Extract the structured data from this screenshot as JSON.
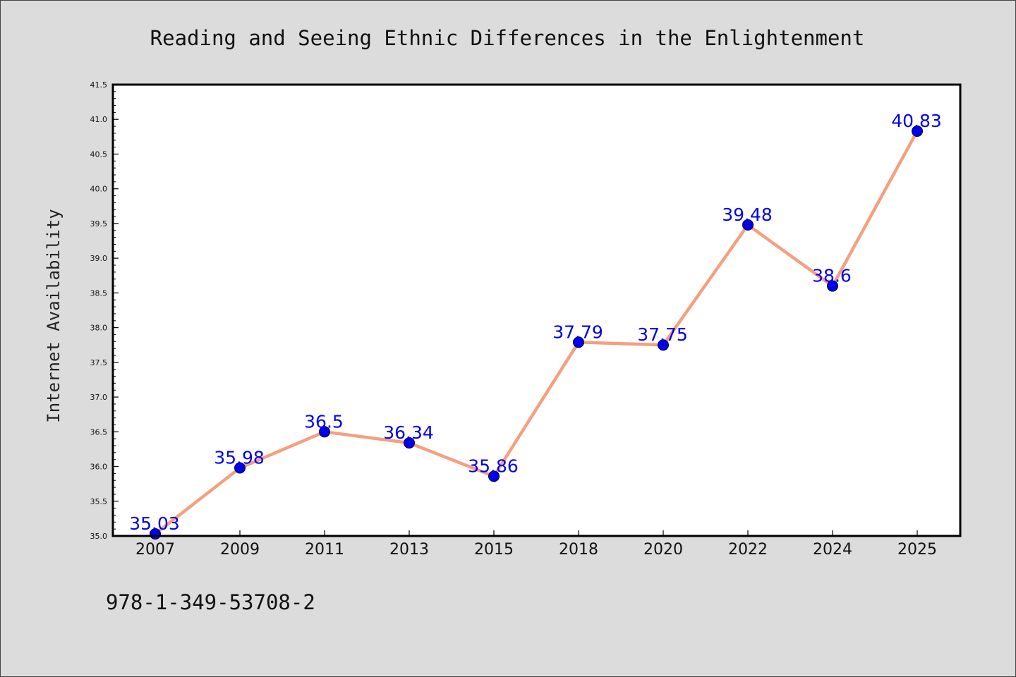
{
  "chart_data": {
    "type": "line",
    "title": "Reading and Seeing Ethnic Differences in the Enlightenment",
    "xlabel": "",
    "ylabel": "Internet Availability",
    "categories": [
      "2007",
      "2009",
      "2011",
      "2013",
      "2015",
      "2018",
      "2020",
      "2022",
      "2024",
      "2025"
    ],
    "series": [
      {
        "values": [
          35.03,
          35.98,
          36.5,
          36.34,
          35.86,
          37.79,
          37.75,
          39.48,
          38.6,
          40.83
        ],
        "data_labels": [
          "35.03",
          "35.98",
          "36.5",
          "36.34",
          "35.86",
          "37.79",
          "37.75",
          "39.48",
          "38.6",
          "40.83"
        ]
      }
    ],
    "ylim": [
      35.0,
      41.5
    ],
    "yticks": [
      "35.0",
      "35.5",
      "36.0",
      "36.5",
      "37.0",
      "37.5",
      "38.0",
      "38.5",
      "39.0",
      "39.5",
      "40.0",
      "40.5",
      "41.0",
      "41.5"
    ],
    "grid": false,
    "legend": "none",
    "colors": {
      "line": "#f4a07f",
      "marker": "#0000ee",
      "label": "#0000ee"
    }
  },
  "footer": {
    "isbn": "978-1-349-53708-2"
  }
}
